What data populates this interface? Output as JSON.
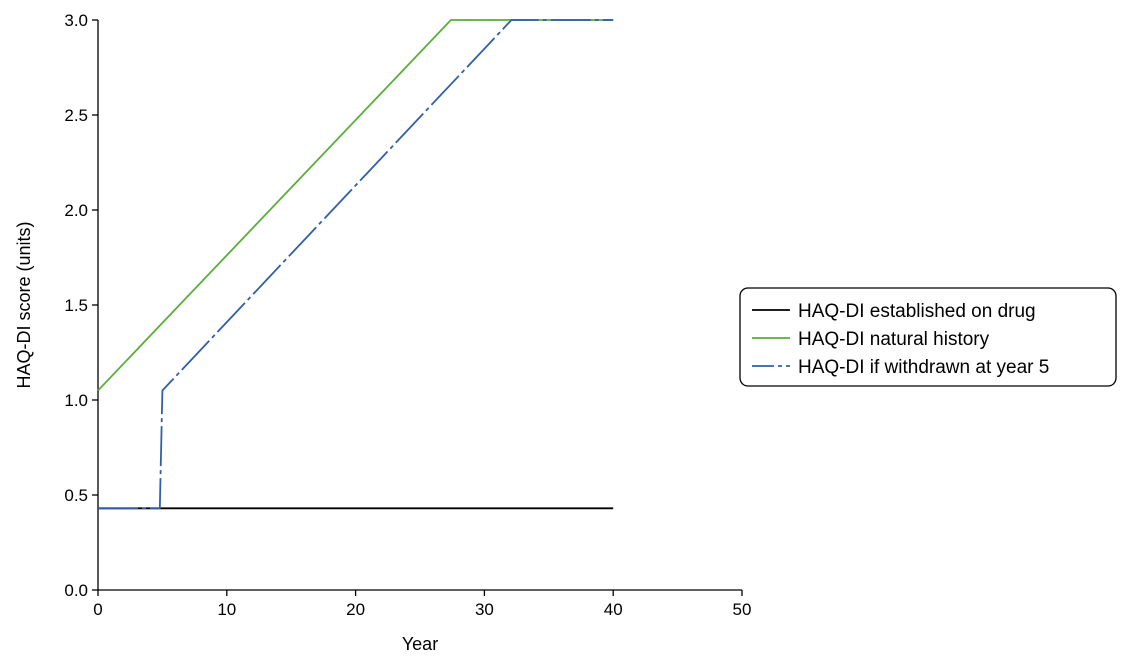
{
  "chart_data": {
    "type": "line",
    "title": "",
    "xlabel": "Year",
    "ylabel": "HAQ-DI score (units)",
    "xlim": [
      0,
      50
    ],
    "ylim": [
      0,
      3.0
    ],
    "xticks": [
      0,
      10,
      20,
      30,
      40,
      50
    ],
    "yticks": [
      0.0,
      0.5,
      1.0,
      1.5,
      2.0,
      2.5,
      3.0
    ],
    "xtick_labels": [
      "0",
      "10",
      "20",
      "30",
      "40",
      "50"
    ],
    "ytick_labels": [
      "0.0",
      "0.5",
      "1.0",
      "1.5",
      "2.0",
      "2.5",
      "3.0"
    ],
    "grid": false,
    "legend_position": "right",
    "series": [
      {
        "name": "HAQ-DI established on drug",
        "color": "#000000",
        "dash": "solid",
        "x": [
          0,
          40
        ],
        "y": [
          0.43,
          0.43
        ]
      },
      {
        "name": "HAQ-DI natural history",
        "color": "#5aae3c",
        "dash": "solid",
        "x": [
          0,
          27.4,
          40
        ],
        "y": [
          1.05,
          3.0,
          3.0
        ]
      },
      {
        "name": "HAQ-DI if withdrawn at year 5",
        "color": "#2f5fa8",
        "dash": "dashed",
        "x": [
          0,
          4.8,
          5.0,
          32.1,
          40
        ],
        "y": [
          0.43,
          0.43,
          1.05,
          3.0,
          3.0
        ]
      }
    ]
  }
}
